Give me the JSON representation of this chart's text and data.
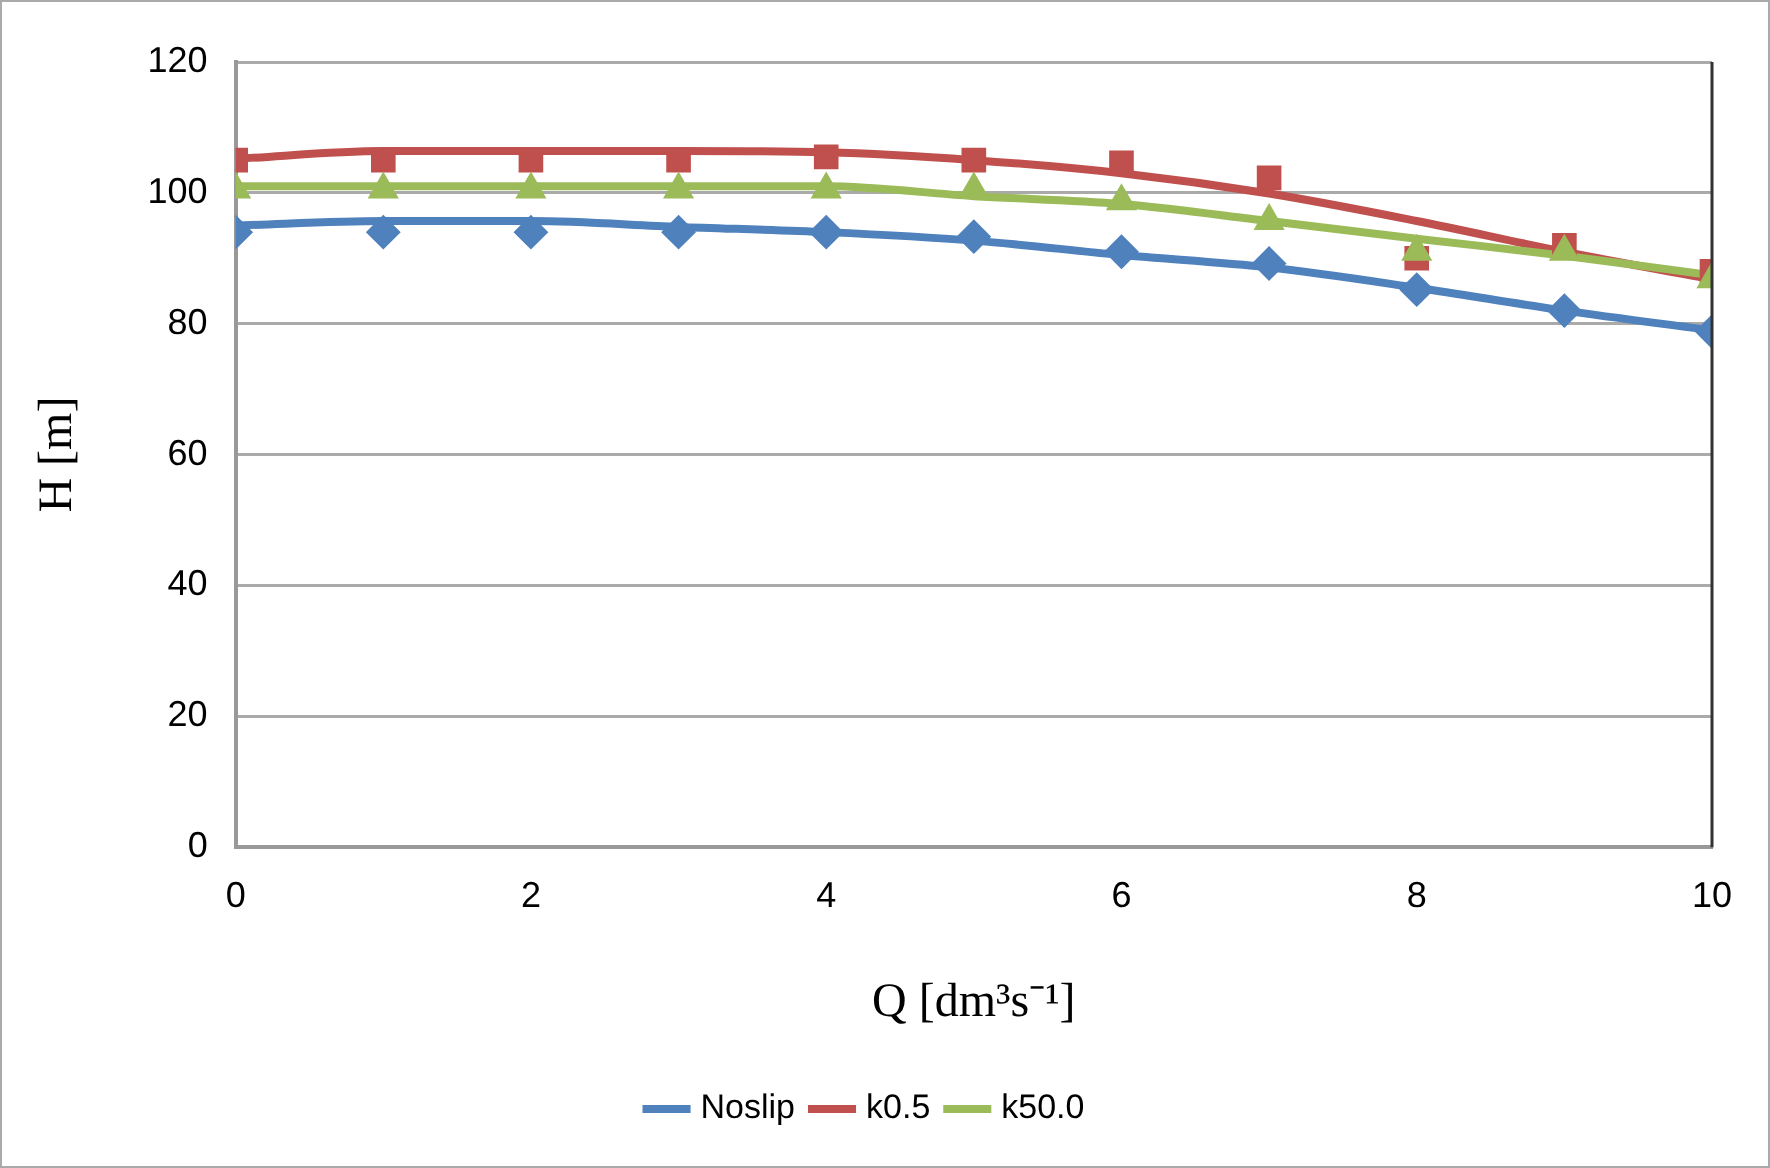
{
  "chart_data": {
    "type": "line",
    "xlabel": "Q [dm³s⁻¹]",
    "ylabel": "H [m]",
    "x": [
      0,
      1,
      2,
      3,
      4,
      5,
      6,
      7,
      8,
      9,
      10
    ],
    "xlim": [
      0,
      10
    ],
    "xticks": [
      0,
      2,
      4,
      6,
      8,
      10
    ],
    "ylim": [
      0,
      120
    ],
    "yticks": [
      0,
      20,
      40,
      60,
      80,
      100,
      120
    ],
    "grid": "y",
    "legend": "bottom",
    "line_style": "solid",
    "series": [
      {
        "name": "Noslip",
        "marker": "none",
        "color": "#4f81bd",
        "values": [
          95,
          95.7,
          95.7,
          94.8,
          94,
          92.7,
          90.5,
          88.6,
          85.5,
          82,
          79
        ]
      },
      {
        "name": "k0.5",
        "marker": "none",
        "color": "#c0504d",
        "values": [
          105.2,
          106.4,
          106.4,
          106.4,
          106.2,
          105,
          103,
          99.9,
          95.7,
          91,
          86.8
        ]
      },
      {
        "name": "k50.0",
        "marker": "none",
        "color": "#9bbb59",
        "values": [
          101,
          101,
          101,
          101,
          101,
          99.5,
          98.3,
          95.7,
          93,
          90.4,
          87.4
        ]
      },
      {
        "type": "scatter",
        "marker": "diamond",
        "color": "#4f81bd",
        "values": [
          94,
          94,
          94,
          94,
          94,
          93.3,
          91,
          89.2,
          85.2,
          82,
          78.8
        ]
      },
      {
        "type": "scatter",
        "marker": "square",
        "color": "#c0504d",
        "values": [
          105,
          105,
          105,
          105,
          105.5,
          105,
          104.6,
          102.3,
          90,
          92,
          88
        ]
      },
      {
        "type": "scatter",
        "marker": "triangle",
        "color": "#9bbb59",
        "values": [
          100.5,
          100.5,
          100.5,
          100.5,
          100.5,
          100.5,
          98.7,
          95.7,
          91,
          91,
          86.8
        ]
      }
    ]
  }
}
